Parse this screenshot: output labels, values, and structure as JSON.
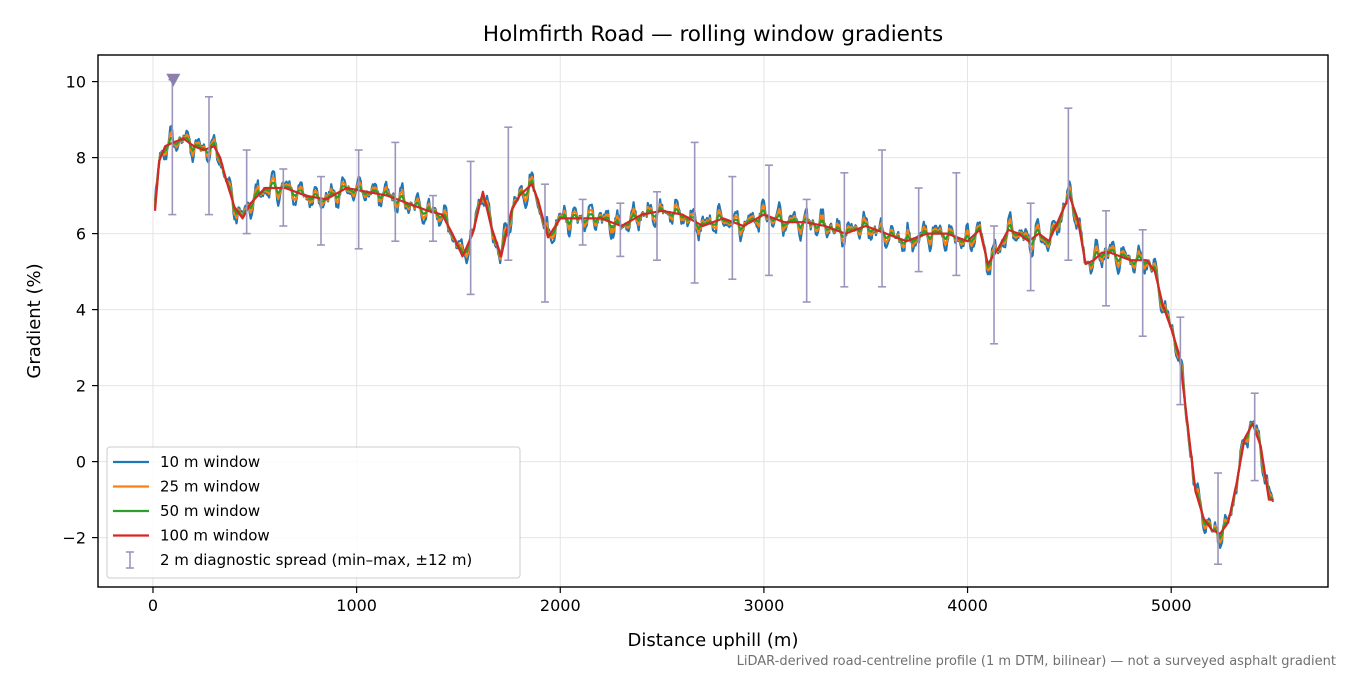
{
  "chart_data": {
    "type": "line",
    "title": "Holmfirth Road — rolling window gradients",
    "xlabel": "Distance uphill (m)",
    "ylabel": "Gradient (%)",
    "xlim": [
      -270,
      5770
    ],
    "ylim": [
      -3.3,
      10.7
    ],
    "xticks": [
      0,
      1000,
      2000,
      3000,
      4000,
      5000
    ],
    "yticks": [
      -2,
      0,
      2,
      4,
      6,
      8,
      10
    ],
    "ytick_labels": [
      "−2",
      "0",
      "2",
      "4",
      "6",
      "8",
      "10"
    ],
    "grid": true,
    "legend_position": "lower-left",
    "footnote": "LiDAR-derived road-centreline profile (1 m DTM, bilinear) — not a surveyed asphalt gradient",
    "marker": {
      "x": 100,
      "y": 10.05,
      "shape": "triangle-down",
      "color": "#8c7fb0"
    },
    "series": [
      {
        "name": "10 m window",
        "color": "#1f77b4",
        "noise_amplitude": 0.45,
        "width": 2.2
      },
      {
        "name": "25 m window",
        "color": "#ff7f0e",
        "noise_amplitude": 0.28,
        "width": 2.2
      },
      {
        "name": "50 m window",
        "color": "#2ca02c",
        "noise_amplitude": 0.14,
        "width": 2.2
      },
      {
        "name": "100 m window",
        "color": "#d62728",
        "noise_amplitude": 0.0,
        "width": 2.2
      }
    ],
    "baseline_profile": {
      "x": [
        10,
        30,
        60,
        100,
        150,
        200,
        250,
        300,
        330,
        360,
        400,
        440,
        480,
        550,
        650,
        750,
        850,
        950,
        1050,
        1150,
        1250,
        1350,
        1420,
        1470,
        1520,
        1570,
        1620,
        1660,
        1710,
        1760,
        1800,
        1860,
        1890,
        1940,
        2000,
        2100,
        2200,
        2300,
        2400,
        2500,
        2600,
        2700,
        2800,
        2900,
        3000,
        3100,
        3200,
        3300,
        3400,
        3500,
        3600,
        3700,
        3800,
        3900,
        4000,
        4060,
        4100,
        4150,
        4200,
        4250,
        4300,
        4350,
        4400,
        4450,
        4500,
        4540,
        4580,
        4620,
        4660,
        4700,
        4800,
        4880,
        4920,
        4960,
        5000,
        5040,
        5080,
        5120,
        5160,
        5200,
        5240,
        5280,
        5320,
        5360,
        5400,
        5440,
        5480
      ],
      "y": [
        6.6,
        7.9,
        8.3,
        8.4,
        8.5,
        8.3,
        8.2,
        8.3,
        8.0,
        7.4,
        6.7,
        6.4,
        6.8,
        7.2,
        7.2,
        7.0,
        6.9,
        7.2,
        7.1,
        7.0,
        6.8,
        6.6,
        6.5,
        6.0,
        5.4,
        6.0,
        7.1,
        6.2,
        5.4,
        6.6,
        7.0,
        7.3,
        6.9,
        5.9,
        6.4,
        6.4,
        6.4,
        6.2,
        6.5,
        6.6,
        6.5,
        6.2,
        6.4,
        6.2,
        6.5,
        6.3,
        6.3,
        6.2,
        6.0,
        6.2,
        6.0,
        5.8,
        6.0,
        6.0,
        5.8,
        6.1,
        5.2,
        5.6,
        6.1,
        6.0,
        5.8,
        6.0,
        5.8,
        6.4,
        7.0,
        6.4,
        5.2,
        5.3,
        5.5,
        5.5,
        5.3,
        5.3,
        5.0,
        4.1,
        3.5,
        2.8,
        1.0,
        -0.8,
        -1.5,
        -1.8,
        -1.9,
        -1.6,
        -0.6,
        0.6,
        1.0,
        0.4,
        -1.0
      ]
    },
    "errorbars": {
      "name": "2 m diagnostic spread (min–max, ±12 m)",
      "color": "#9d96bc",
      "points": [
        {
          "x": 95,
          "low": 6.5,
          "high": 10.05
        },
        {
          "x": 275,
          "low": 6.5,
          "high": 9.6
        },
        {
          "x": 460,
          "low": 6.0,
          "high": 8.2
        },
        {
          "x": 640,
          "low": 6.2,
          "high": 7.7
        },
        {
          "x": 825,
          "low": 5.7,
          "high": 7.5
        },
        {
          "x": 1010,
          "low": 5.6,
          "high": 8.2
        },
        {
          "x": 1190,
          "low": 5.8,
          "high": 8.4
        },
        {
          "x": 1375,
          "low": 5.8,
          "high": 7.0
        },
        {
          "x": 1560,
          "low": 4.4,
          "high": 7.9
        },
        {
          "x": 1745,
          "low": 5.3,
          "high": 8.8
        },
        {
          "x": 1925,
          "low": 4.2,
          "high": 7.3
        },
        {
          "x": 2110,
          "low": 5.7,
          "high": 6.9
        },
        {
          "x": 2295,
          "low": 5.4,
          "high": 6.8
        },
        {
          "x": 2475,
          "low": 5.3,
          "high": 7.1
        },
        {
          "x": 2660,
          "low": 4.7,
          "high": 8.4
        },
        {
          "x": 2845,
          "low": 4.8,
          "high": 7.5
        },
        {
          "x": 3025,
          "low": 4.9,
          "high": 7.8
        },
        {
          "x": 3210,
          "low": 4.2,
          "high": 6.9
        },
        {
          "x": 3395,
          "low": 4.6,
          "high": 7.6
        },
        {
          "x": 3580,
          "low": 4.6,
          "high": 8.2
        },
        {
          "x": 3760,
          "low": 5.0,
          "high": 7.2
        },
        {
          "x": 3945,
          "low": 4.9,
          "high": 7.6
        },
        {
          "x": 4130,
          "low": 3.1,
          "high": 6.2
        },
        {
          "x": 4310,
          "low": 4.5,
          "high": 6.8
        },
        {
          "x": 4495,
          "low": 5.3,
          "high": 9.3
        },
        {
          "x": 4680,
          "low": 4.1,
          "high": 6.6
        },
        {
          "x": 4860,
          "low": 3.3,
          "high": 6.1
        },
        {
          "x": 5045,
          "low": 1.5,
          "high": 3.8
        },
        {
          "x": 5230,
          "low": -2.7,
          "high": -0.3
        },
        {
          "x": 5410,
          "low": -0.5,
          "high": 1.8
        }
      ]
    }
  }
}
